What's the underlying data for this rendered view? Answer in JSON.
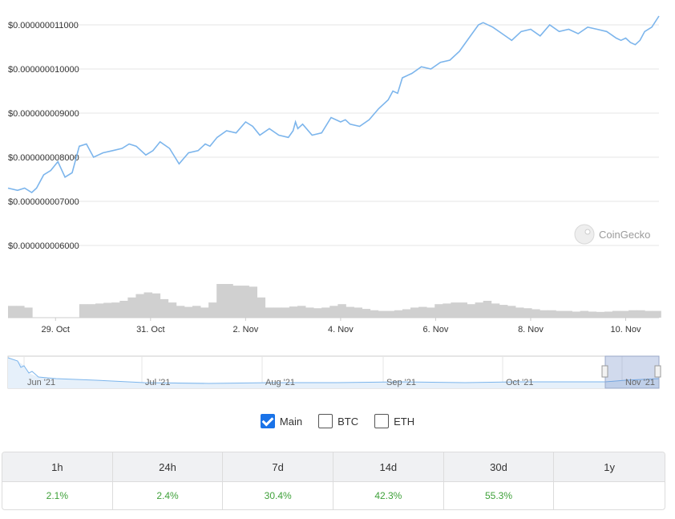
{
  "chart_data": {
    "type": "line",
    "title": "",
    "xlabel": "",
    "ylabel": "",
    "y_tick_labels": [
      "$0.000000011000",
      "$0.000000010000",
      "$0.000000009000",
      "$0.000000008000",
      "$0.000000007000",
      "$0.000000006000"
    ],
    "y_ticks": [
      1.1e-08,
      1e-08,
      9e-09,
      8e-09,
      7e-09,
      6e-09
    ],
    "ylim": [
      6e-09,
      1.1e-08
    ],
    "x_tick_labels": [
      "29. Oct",
      "31. Oct",
      "2. Nov",
      "4. Nov",
      "6. Nov",
      "8. Nov",
      "10. Nov"
    ],
    "x_tick_days": [
      1,
      3,
      5,
      7,
      9,
      11,
      13
    ],
    "xlim_days": [
      0,
      13.7
    ],
    "series": [
      {
        "color": "#7cb5ec",
        "day": [
          0,
          0.2,
          0.35,
          0.5,
          0.6,
          0.75,
          0.9,
          1.05,
          1.2,
          1.35,
          1.5,
          1.65,
          1.8,
          2.0,
          2.2,
          2.4,
          2.55,
          2.7,
          2.9,
          3.05,
          3.2,
          3.4,
          3.6,
          3.8,
          4.0,
          4.15,
          4.25,
          4.4,
          4.6,
          4.8,
          5.0,
          5.15,
          5.3,
          5.5,
          5.7,
          5.9,
          6.0,
          6.05,
          6.1,
          6.2,
          6.4,
          6.6,
          6.8,
          7.0,
          7.1,
          7.2,
          7.4,
          7.6,
          7.8,
          8.0,
          8.1,
          8.2,
          8.3,
          8.5,
          8.7,
          8.9,
          9.1,
          9.3,
          9.5,
          9.7,
          9.9,
          10.0,
          10.2,
          10.4,
          10.6,
          10.8,
          11.0,
          11.2,
          11.4,
          11.6,
          11.8,
          12.0,
          12.2,
          12.4,
          12.6,
          12.8,
          12.9,
          13.0,
          13.1,
          13.2,
          13.3,
          13.4,
          13.55,
          13.7
        ],
        "values": [
          7.3,
          7.25,
          7.3,
          7.2,
          7.3,
          7.6,
          7.7,
          7.9,
          7.55,
          7.65,
          8.25,
          8.3,
          8.0,
          8.1,
          8.15,
          8.2,
          8.3,
          8.25,
          8.05,
          8.15,
          8.35,
          8.2,
          7.85,
          8.1,
          8.15,
          8.3,
          8.25,
          8.45,
          8.6,
          8.55,
          8.8,
          8.7,
          8.5,
          8.65,
          8.5,
          8.45,
          8.6,
          8.8,
          8.65,
          8.75,
          8.5,
          8.55,
          8.9,
          8.8,
          8.85,
          8.75,
          8.7,
          8.85,
          9.1,
          9.3,
          9.5,
          9.45,
          9.8,
          9.9,
          10.05,
          10.0,
          10.15,
          10.2,
          10.4,
          10.7,
          11.0,
          11.05,
          10.95,
          10.8,
          10.65,
          10.85,
          10.9,
          10.75,
          11.0,
          10.85,
          10.9,
          10.8,
          10.95,
          10.9,
          10.85,
          10.7,
          10.65,
          10.7,
          10.6,
          10.55,
          10.65,
          10.85,
          10.95,
          11.2
        ]
      }
    ],
    "volume": {
      "color": "#d0d0d0",
      "day": [
        0,
        0.17,
        0.34,
        0.51,
        1.5,
        1.67,
        1.84,
        2.01,
        2.18,
        2.35,
        2.52,
        2.69,
        2.86,
        3.03,
        3.2,
        3.37,
        3.54,
        3.71,
        3.88,
        4.05,
        4.22,
        4.39,
        4.56,
        4.73,
        4.9,
        5.07,
        5.24,
        5.41,
        5.58,
        5.75,
        5.92,
        6.09,
        6.26,
        6.43,
        6.6,
        6.77,
        6.94,
        7.11,
        7.28,
        7.45,
        7.62,
        7.79,
        7.96,
        8.13,
        8.3,
        8.47,
        8.64,
        8.81,
        8.98,
        9.15,
        9.32,
        9.49,
        9.66,
        9.83,
        10.0,
        10.17,
        10.34,
        10.51,
        10.68,
        10.85,
        11.02,
        11.19,
        11.36,
        11.53,
        11.7,
        11.87,
        12.04,
        12.21,
        12.38,
        12.55,
        12.72,
        12.89,
        13.06,
        13.23,
        13.4,
        13.57
      ],
      "values": [
        0.35,
        0.35,
        0.3,
        0,
        0.4,
        0.4,
        0.42,
        0.44,
        0.45,
        0.5,
        0.6,
        0.7,
        0.75,
        0.72,
        0.55,
        0.45,
        0.35,
        0.32,
        0.35,
        0.3,
        0.45,
        1.0,
        1.0,
        0.95,
        0.95,
        0.92,
        0.6,
        0.3,
        0.3,
        0.3,
        0.33,
        0.35,
        0.3,
        0.28,
        0.3,
        0.35,
        0.4,
        0.32,
        0.3,
        0.26,
        0.22,
        0.2,
        0.2,
        0.22,
        0.25,
        0.3,
        0.32,
        0.3,
        0.4,
        0.42,
        0.45,
        0.45,
        0.4,
        0.45,
        0.5,
        0.42,
        0.38,
        0.35,
        0.3,
        0.28,
        0.25,
        0.22,
        0.22,
        0.2,
        0.2,
        0.18,
        0.2,
        0.18,
        0.17,
        0.18,
        0.2,
        0.2,
        0.22,
        0.22,
        0.2,
        0.2
      ]
    },
    "navigator": {
      "x_tick_labels": [
        "Jun '21",
        "Jul '21",
        "Aug '21",
        "Sep '21",
        "Oct '21",
        "Nov '21"
      ]
    },
    "grid": true,
    "legend": "none"
  },
  "watermark": "CoinGecko",
  "toggles": [
    {
      "label": "Main",
      "checked": true
    },
    {
      "label": "BTC",
      "checked": false
    },
    {
      "label": "ETH",
      "checked": false
    }
  ],
  "performance": [
    {
      "period": "1h",
      "change": "2.1%"
    },
    {
      "period": "24h",
      "change": "2.4%"
    },
    {
      "period": "7d",
      "change": "30.4%"
    },
    {
      "period": "14d",
      "change": "42.3%"
    },
    {
      "period": "30d",
      "change": "55.3%"
    },
    {
      "period": "1y",
      "change": ""
    }
  ]
}
